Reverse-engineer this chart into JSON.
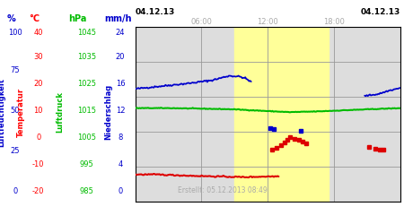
{
  "footer": "Erstellt: 05.12.2013 08:49",
  "date_label": "04.12.13",
  "time_labels": [
    "06:00",
    "12:00",
    "18:00"
  ],
  "yellow_span1": [
    9.0,
    12.0
  ],
  "yellow_span2": [
    12.0,
    17.5
  ],
  "grid_color": "#999999",
  "bg_color": "#dddddd",
  "yellow_color": "#ffff99",
  "humidity_color": "#0000cc",
  "temperature_color": "#dd0000",
  "pressure_color": "#00bb00",
  "precip_red_color": "#dd0000",
  "precip_blue_color": "#0000cc",
  "white": "#ffffff",
  "col1_color": "#0000cc",
  "col2_color": "#ff0000",
  "col3_color": "#00bb00",
  "col4_color": "#0000cc",
  "units": [
    "%",
    "°C",
    "hPa",
    "mm/h"
  ],
  "pct_values": [
    "100",
    "75",
    "50",
    "25",
    "0"
  ],
  "temp_values": [
    "40",
    "30",
    "20",
    "10",
    "0",
    "-10",
    "-20"
  ],
  "hpa_values": [
    "1045",
    "1035",
    "1025",
    "1015",
    "1005",
    "995",
    "985"
  ],
  "mmh_values": [
    "24",
    "20",
    "16",
    "12",
    "8",
    "4",
    "0"
  ],
  "label_luftfeuchtigkeit": "Luftfeuchtigkeit",
  "label_temperatur": "Temperatur",
  "label_luftdruck": "Luftdruck",
  "label_niederschlag": "Niederschlag"
}
